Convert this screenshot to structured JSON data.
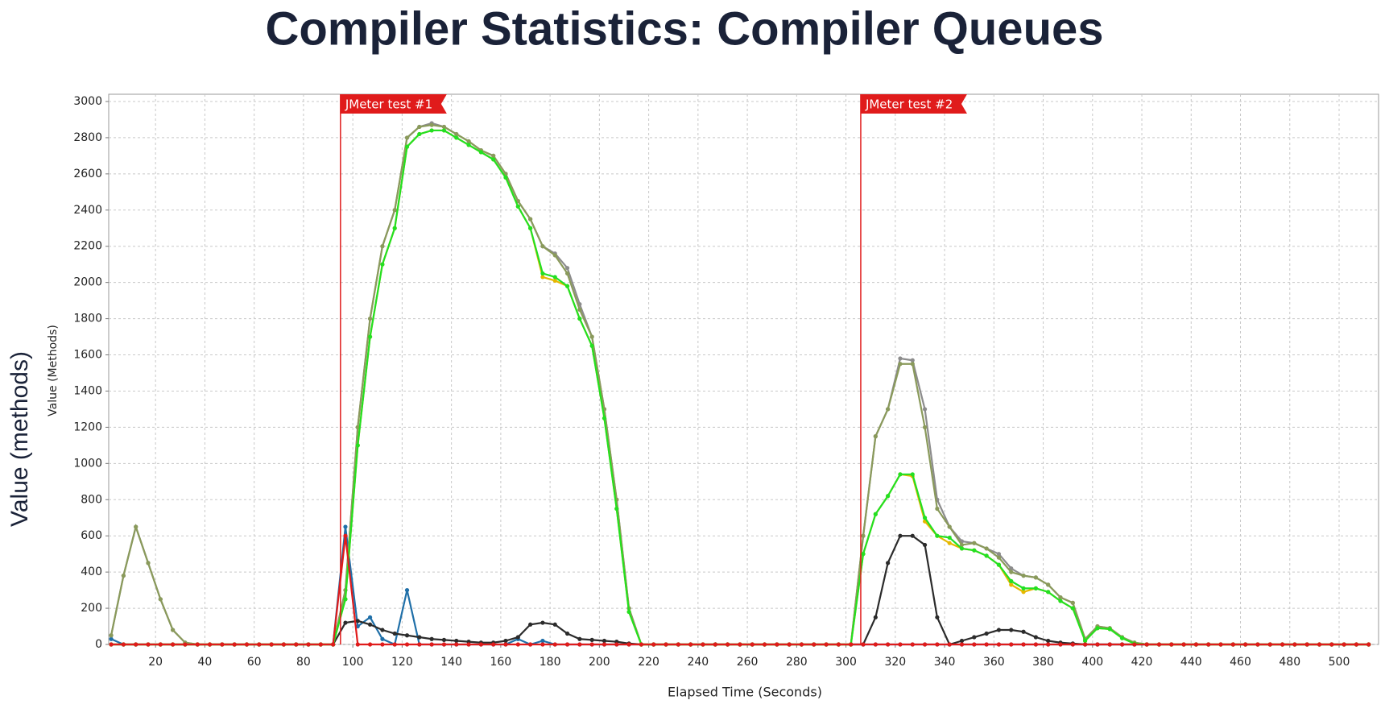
{
  "chart_data": {
    "type": "line",
    "title": "Compiler Statistics: Compiler Queues",
    "outer_y_label": "Value (methods)",
    "y_label": "Value (Methods)",
    "x_label": "Elapsed Time (Seconds)",
    "xlim": [
      1,
      516
    ],
    "ylim": [
      0,
      3040
    ],
    "xticks": [
      20,
      40,
      60,
      80,
      100,
      120,
      140,
      160,
      180,
      200,
      220,
      240,
      260,
      280,
      300,
      320,
      340,
      360,
      380,
      400,
      420,
      440,
      460,
      480,
      500
    ],
    "yticks": [
      0,
      200,
      400,
      600,
      800,
      1000,
      1200,
      1400,
      1600,
      1800,
      2000,
      2200,
      2400,
      2600,
      2800,
      3000
    ],
    "grid": true,
    "annotations": [
      {
        "text": "JMeter test #1",
        "x": 95
      },
      {
        "text": "JMeter test #2",
        "x": 306
      }
    ],
    "x": [
      2,
      7,
      12,
      17,
      22,
      27,
      32,
      37,
      42,
      47,
      52,
      57,
      62,
      67,
      72,
      77,
      82,
      87,
      92,
      97,
      102,
      107,
      112,
      117,
      122,
      127,
      132,
      137,
      142,
      147,
      152,
      157,
      162,
      167,
      172,
      177,
      182,
      187,
      192,
      197,
      202,
      207,
      212,
      217,
      222,
      227,
      232,
      237,
      242,
      247,
      252,
      257,
      262,
      267,
      272,
      277,
      282,
      287,
      292,
      297,
      302,
      307,
      312,
      317,
      322,
      327,
      332,
      337,
      342,
      347,
      352,
      357,
      362,
      367,
      372,
      377,
      382,
      387,
      392,
      397,
      402,
      407,
      412,
      417,
      422,
      427,
      432,
      437,
      442,
      447,
      452,
      457,
      462,
      467,
      472,
      477,
      482,
      487,
      492,
      497,
      502,
      507,
      512
    ],
    "series": [
      {
        "color": "#1f6fa8",
        "values": [
          30,
          0,
          0,
          0,
          0,
          0,
          0,
          0,
          0,
          0,
          0,
          0,
          0,
          0,
          0,
          0,
          0,
          0,
          0,
          650,
          100,
          150,
          30,
          0,
          300,
          0,
          0,
          0,
          0,
          0,
          0,
          0,
          0,
          30,
          0,
          20,
          0,
          0,
          0,
          0,
          0,
          0,
          0,
          0,
          0,
          0,
          0,
          0,
          0,
          0,
          0,
          0,
          0,
          0,
          0,
          0,
          0,
          0,
          0,
          0,
          0,
          0,
          0,
          0,
          0,
          0,
          0,
          0,
          0,
          0,
          0,
          0,
          0,
          0,
          0,
          0,
          0,
          0,
          0,
          0,
          0,
          0,
          0,
          0,
          0,
          0,
          0,
          0,
          0,
          0,
          0,
          0,
          0,
          0,
          0,
          0,
          0,
          0,
          0,
          0,
          0,
          0,
          0
        ]
      },
      {
        "color": "#2b2b2b",
        "values": [
          0,
          0,
          0,
          0,
          0,
          0,
          0,
          0,
          0,
          0,
          0,
          0,
          0,
          0,
          0,
          0,
          0,
          0,
          0,
          120,
          130,
          110,
          80,
          60,
          50,
          40,
          30,
          25,
          20,
          15,
          10,
          10,
          20,
          40,
          110,
          120,
          110,
          60,
          30,
          25,
          20,
          15,
          5,
          0,
          0,
          0,
          0,
          0,
          0,
          0,
          0,
          0,
          0,
          0,
          0,
          0,
          0,
          0,
          0,
          0,
          0,
          0,
          150,
          450,
          600,
          600,
          550,
          150,
          0,
          20,
          40,
          60,
          80,
          80,
          70,
          40,
          20,
          10,
          5,
          0,
          0,
          0,
          0,
          0,
          0,
          0,
          0,
          0,
          0,
          0,
          0,
          0,
          0,
          0,
          0,
          0,
          0,
          0,
          0,
          0,
          0,
          0,
          0
        ]
      },
      {
        "color": "#8c8c8c",
        "values": [
          50,
          380,
          650,
          450,
          250,
          80,
          10,
          0,
          0,
          0,
          0,
          0,
          0,
          0,
          0,
          0,
          0,
          0,
          0,
          300,
          1200,
          1800,
          2200,
          2400,
          2800,
          2860,
          2880,
          2860,
          2820,
          2780,
          2730,
          2700,
          2600,
          2450,
          2350,
          2200,
          2160,
          2080,
          1880,
          1700,
          1300,
          800,
          200,
          0,
          0,
          0,
          0,
          0,
          0,
          0,
          0,
          0,
          0,
          0,
          0,
          0,
          0,
          0,
          0,
          0,
          0,
          600,
          1150,
          1300,
          1580,
          1570,
          1300,
          800,
          650,
          570,
          560,
          530,
          500,
          420,
          380,
          370,
          330,
          260,
          230,
          30,
          100,
          90,
          40,
          10,
          0,
          0,
          0,
          0,
          0,
          0,
          0,
          0,
          0,
          0,
          0,
          0,
          0,
          0,
          0,
          0,
          0,
          0,
          0
        ]
      },
      {
        "color": "#8a9a5b",
        "values": [
          50,
          380,
          650,
          450,
          250,
          80,
          10,
          0,
          0,
          0,
          0,
          0,
          0,
          0,
          0,
          0,
          0,
          0,
          0,
          300,
          1200,
          1800,
          2200,
          2400,
          2800,
          2860,
          2870,
          2860,
          2820,
          2780,
          2730,
          2700,
          2600,
          2450,
          2350,
          2200,
          2150,
          2050,
          1850,
          1700,
          1300,
          800,
          200,
          0,
          0,
          0,
          0,
          0,
          0,
          0,
          0,
          0,
          0,
          0,
          0,
          0,
          0,
          0,
          0,
          0,
          0,
          600,
          1150,
          1300,
          1550,
          1550,
          1200,
          750,
          650,
          550,
          560,
          530,
          480,
          400,
          380,
          370,
          330,
          260,
          230,
          30,
          100,
          90,
          40,
          10,
          0,
          0,
          0,
          0,
          0,
          0,
          0,
          0,
          0,
          0,
          0,
          0,
          0,
          0,
          0,
          0,
          0,
          0,
          0
        ]
      },
      {
        "color": "#e6b800",
        "values": [
          0,
          0,
          0,
          0,
          0,
          0,
          0,
          0,
          0,
          0,
          0,
          0,
          0,
          0,
          0,
          0,
          0,
          0,
          0,
          250,
          1100,
          1700,
          2100,
          2300,
          2750,
          2820,
          2840,
          2840,
          2800,
          2760,
          2720,
          2680,
          2580,
          2420,
          2300,
          2030,
          2010,
          1980,
          1800,
          1650,
          1250,
          750,
          180,
          0,
          0,
          0,
          0,
          0,
          0,
          0,
          0,
          0,
          0,
          0,
          0,
          0,
          0,
          0,
          0,
          0,
          0,
          500,
          720,
          820,
          940,
          930,
          680,
          600,
          560,
          530,
          520,
          490,
          440,
          330,
          290,
          310,
          290,
          240,
          200,
          20,
          90,
          85,
          35,
          5,
          0,
          0,
          0,
          0,
          0,
          0,
          0,
          0,
          0,
          0,
          0,
          0,
          0,
          0,
          0,
          0,
          0,
          0,
          0
        ]
      },
      {
        "color": "#22e022",
        "values": [
          0,
          0,
          0,
          0,
          0,
          0,
          0,
          0,
          0,
          0,
          0,
          0,
          0,
          0,
          0,
          0,
          0,
          0,
          0,
          250,
          1100,
          1700,
          2100,
          2300,
          2750,
          2820,
          2840,
          2840,
          2800,
          2760,
          2720,
          2680,
          2580,
          2420,
          2300,
          2050,
          2030,
          1980,
          1800,
          1650,
          1250,
          750,
          180,
          0,
          0,
          0,
          0,
          0,
          0,
          0,
          0,
          0,
          0,
          0,
          0,
          0,
          0,
          0,
          0,
          0,
          0,
          500,
          720,
          820,
          940,
          940,
          700,
          600,
          590,
          530,
          520,
          490,
          440,
          350,
          310,
          310,
          290,
          240,
          200,
          20,
          90,
          85,
          35,
          5,
          0,
          0,
          0,
          0,
          0,
          0,
          0,
          0,
          0,
          0,
          0,
          0,
          0,
          0,
          0,
          0,
          0,
          0,
          0
        ]
      },
      {
        "color": "#e01b1b",
        "values": [
          0,
          0,
          0,
          0,
          0,
          0,
          0,
          0,
          0,
          0,
          0,
          0,
          0,
          0,
          0,
          0,
          0,
          0,
          0,
          600,
          0,
          0,
          0,
          0,
          0,
          0,
          0,
          0,
          0,
          0,
          0,
          0,
          0,
          0,
          0,
          0,
          0,
          0,
          0,
          0,
          0,
          0,
          0,
          0,
          0,
          0,
          0,
          0,
          0,
          0,
          0,
          0,
          0,
          0,
          0,
          0,
          0,
          0,
          0,
          0,
          0,
          0,
          0,
          0,
          0,
          0,
          0,
          0,
          0,
          0,
          0,
          0,
          0,
          0,
          0,
          0,
          0,
          0,
          0,
          0,
          0,
          0,
          0,
          0,
          0,
          0,
          0,
          0,
          0,
          0,
          0,
          0,
          0,
          0,
          0,
          0,
          0,
          0,
          0,
          0,
          0,
          0,
          0
        ]
      }
    ]
  }
}
